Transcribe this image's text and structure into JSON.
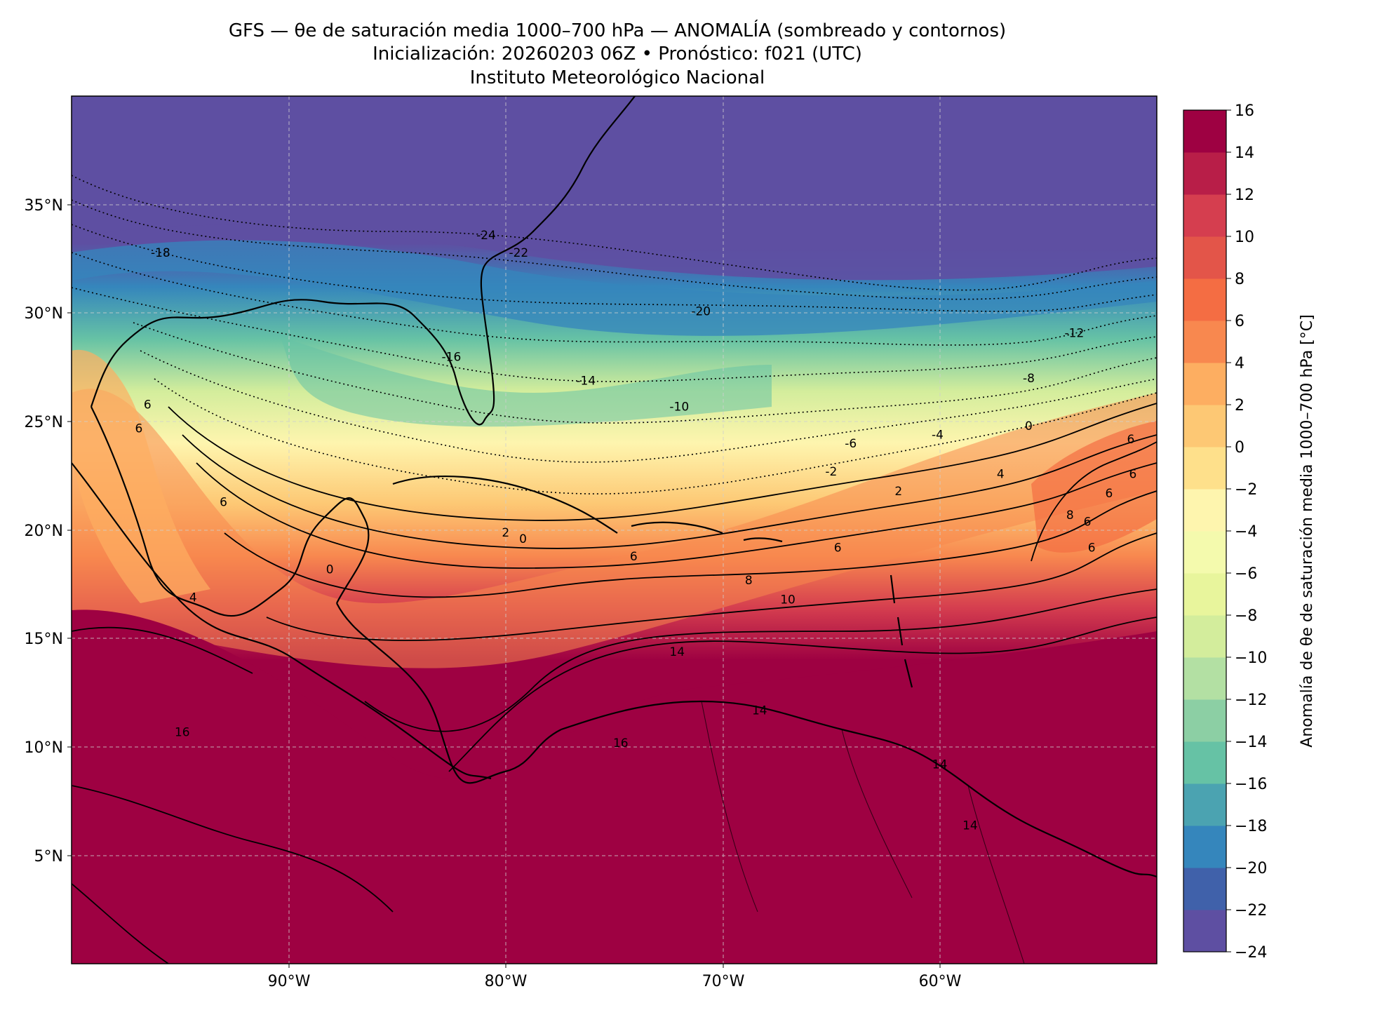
{
  "title": {
    "line1": "GFS — θe de saturación media 1000–700 hPa — ANOMALÍA (sombreado y contornos)",
    "line2": "Inicialización: 20260203 06Z   •   Pronóstico: f021 (UTC)",
    "line3": "Instituto Meteorológico Nacional"
  },
  "map": {
    "type": "filled-contour-map",
    "projection": "PlateCarree",
    "extent": {
      "lon": [
        -100,
        -50
      ],
      "lat": [
        0,
        40
      ]
    },
    "lat_ticks": [
      "35°N",
      "30°N",
      "25°N",
      "20°N",
      "15°N",
      "10°N",
      "5°N"
    ],
    "lon_ticks": [
      "90°W",
      "80°W",
      "70°W",
      "60°W"
    ],
    "gridlines": true,
    "contour_labels": [
      {
        "text": "-24",
        "lon": -80.9,
        "lat": 33.4
      },
      {
        "text": "-22",
        "lon": -79.4,
        "lat": 32.6
      },
      {
        "text": "-18",
        "lon": -95.9,
        "lat": 32.6
      },
      {
        "text": "-20",
        "lon": -71.0,
        "lat": 29.9
      },
      {
        "text": "-16",
        "lon": -82.5,
        "lat": 27.8
      },
      {
        "text": "-14",
        "lon": -76.3,
        "lat": 26.7
      },
      {
        "text": "-12",
        "lon": -53.8,
        "lat": 28.9
      },
      {
        "text": "-10",
        "lon": -72.0,
        "lat": 25.5
      },
      {
        "text": "-8",
        "lon": -55.9,
        "lat": 26.8
      },
      {
        "text": "-6",
        "lon": -64.1,
        "lat": 23.8
      },
      {
        "text": "-4",
        "lon": -60.1,
        "lat": 24.2
      },
      {
        "text": "-2",
        "lon": -65.0,
        "lat": 22.5
      },
      {
        "text": "0",
        "lon": -55.9,
        "lat": 24.6
      },
      {
        "text": "2",
        "lon": -61.9,
        "lat": 21.6
      },
      {
        "text": "4",
        "lon": -57.2,
        "lat": 22.4
      },
      {
        "text": "6",
        "lon": -64.7,
        "lat": 19.0
      },
      {
        "text": "8",
        "lon": -54.0,
        "lat": 20.5
      },
      {
        "text": "8",
        "lon": -68.8,
        "lat": 17.5
      },
      {
        "text": "10",
        "lon": -67.0,
        "lat": 16.6
      },
      {
        "text": "14",
        "lon": -72.1,
        "lat": 14.2
      },
      {
        "text": "14",
        "lon": -68.3,
        "lat": 11.5
      },
      {
        "text": "14",
        "lon": -60.0,
        "lat": 9.0
      },
      {
        "text": "14",
        "lon": -58.6,
        "lat": 6.2
      },
      {
        "text": "16",
        "lon": -74.7,
        "lat": 10.0
      },
      {
        "text": "16",
        "lon": -94.9,
        "lat": 10.5
      },
      {
        "text": "6",
        "lon": -96.9,
        "lat": 24.5
      },
      {
        "text": "6",
        "lon": -96.5,
        "lat": 25.6
      },
      {
        "text": "6",
        "lon": -93.0,
        "lat": 21.1
      },
      {
        "text": "6",
        "lon": -74.1,
        "lat": 18.6
      },
      {
        "text": "6",
        "lon": -51.2,
        "lat": 24.0
      },
      {
        "text": "6",
        "lon": -51.1,
        "lat": 22.4
      },
      {
        "text": "6",
        "lon": -52.2,
        "lat": 21.5
      },
      {
        "text": "6",
        "lon": -53.2,
        "lat": 20.2
      },
      {
        "text": "6",
        "lon": -53.0,
        "lat": 19.0
      },
      {
        "text": "4",
        "lon": -94.4,
        "lat": 16.7
      },
      {
        "text": "2",
        "lon": -80.0,
        "lat": 19.7
      },
      {
        "text": "0",
        "lon": -79.2,
        "lat": 19.4
      },
      {
        "text": "0",
        "lon": -88.1,
        "lat": 18.0
      }
    ]
  },
  "colorbar": {
    "label": "Anomalía de θe de saturación media 1000–700 hPa [°C]",
    "tick_labels": [
      "16",
      "14",
      "12",
      "10",
      "8",
      "6",
      "4",
      "2",
      "0",
      "−2",
      "−4",
      "−6",
      "−8",
      "−10",
      "−12",
      "−14",
      "−16",
      "−18",
      "−20",
      "−22",
      "−24"
    ],
    "levels": [
      -24,
      -22,
      -20,
      -18,
      -16,
      -14,
      -12,
      -10,
      -8,
      -6,
      -4,
      -2,
      0,
      2,
      4,
      6,
      8,
      10,
      12,
      14,
      16
    ],
    "colors": [
      "#5e4fa2",
      "#4061aa",
      "#3586bc",
      "#4ba3b1",
      "#66c2a5",
      "#8ccfa4",
      "#b3e0a3",
      "#d3ed9c",
      "#e8f59c",
      "#f4faad",
      "#fef5ae",
      "#fee08b",
      "#fdc874",
      "#fdae61",
      "#f8884f",
      "#f46d43",
      "#e35549",
      "#d53e4f",
      "#b81e48",
      "#9e0142"
    ]
  }
}
